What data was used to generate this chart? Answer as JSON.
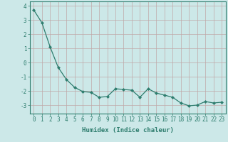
{
  "x": [
    0,
    1,
    2,
    3,
    4,
    5,
    6,
    7,
    8,
    9,
    10,
    11,
    12,
    13,
    14,
    15,
    16,
    17,
    18,
    19,
    20,
    21,
    22,
    23
  ],
  "y": [
    3.7,
    2.8,
    1.1,
    -0.35,
    -1.2,
    -1.75,
    -2.05,
    -2.1,
    -2.45,
    -2.4,
    -1.85,
    -1.9,
    -1.95,
    -2.45,
    -1.85,
    -2.15,
    -2.3,
    -2.45,
    -2.85,
    -3.05,
    -3.0,
    -2.75,
    -2.85,
    -2.8
  ],
  "line_color": "#2e7d6e",
  "marker": "D",
  "markersize": 2.0,
  "linewidth": 0.9,
  "background_color": "#cce8e8",
  "grid_color": "#c0a8a8",
  "xlabel": "Humidex (Indice chaleur)",
  "xlabel_fontsize": 6.5,
  "tick_fontsize": 5.5,
  "ylim": [
    -3.6,
    4.3
  ],
  "xlim": [
    -0.5,
    23.5
  ],
  "yticks": [
    -3,
    -2,
    -1,
    0,
    1,
    2,
    3,
    4
  ],
  "xticks": [
    0,
    1,
    2,
    3,
    4,
    5,
    6,
    7,
    8,
    9,
    10,
    11,
    12,
    13,
    14,
    15,
    16,
    17,
    18,
    19,
    20,
    21,
    22,
    23
  ]
}
